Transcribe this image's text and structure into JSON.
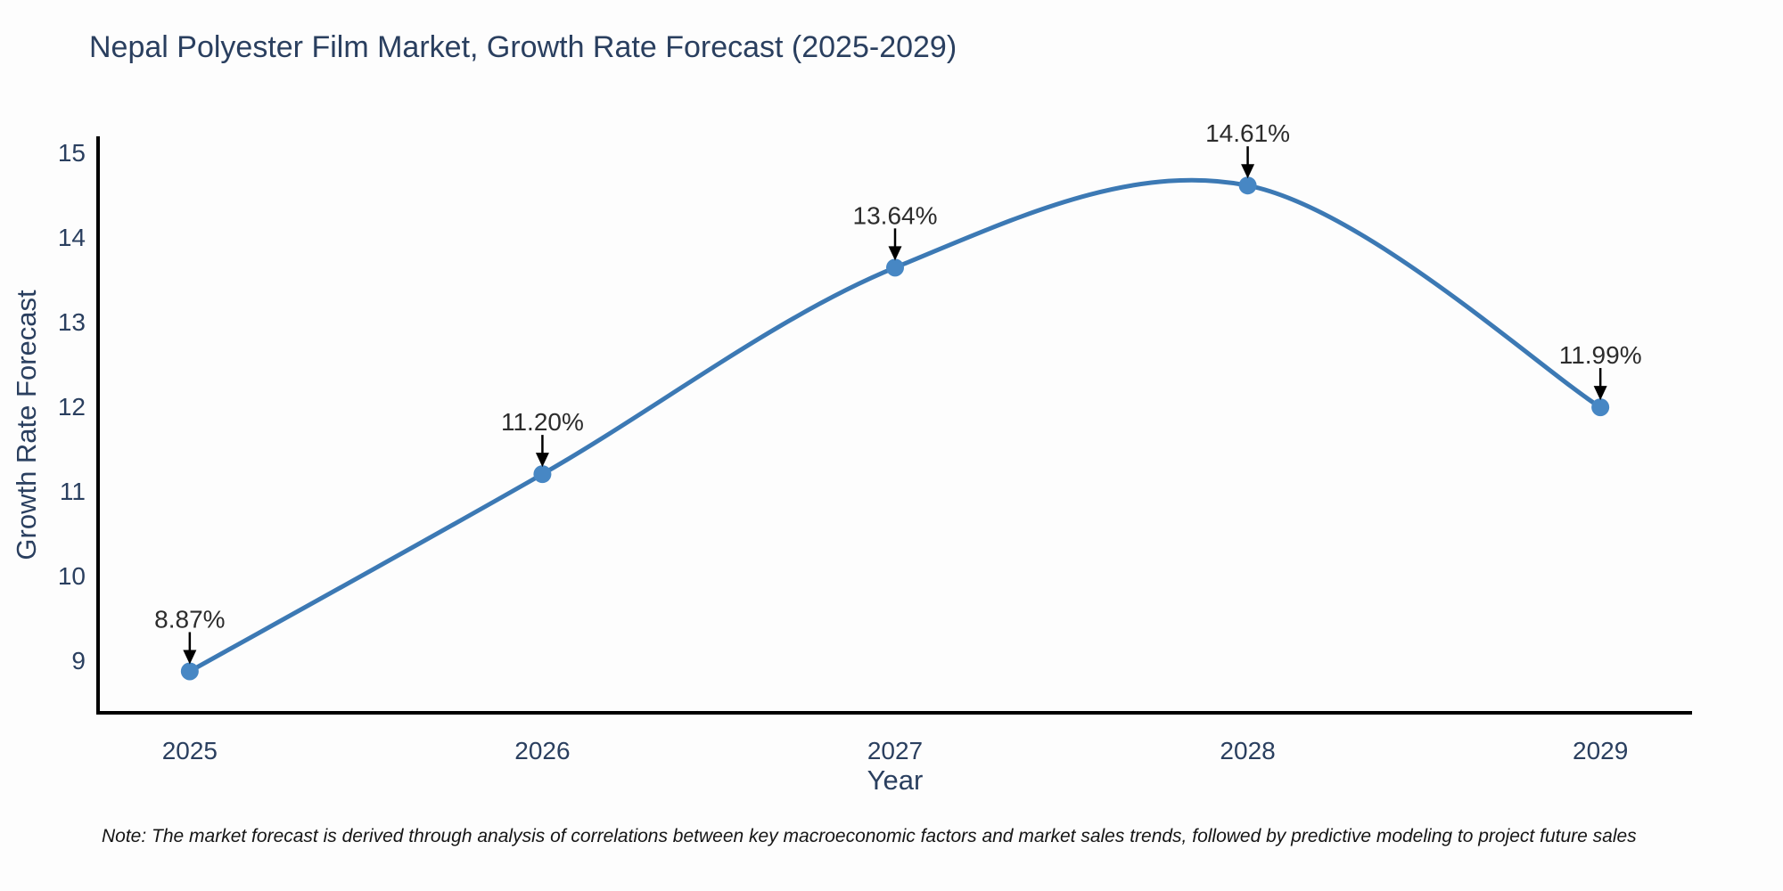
{
  "chart_data": {
    "type": "line",
    "title": "Nepal Polyester Film Market, Growth Rate Forecast (2025-2029)",
    "xlabel": "Year",
    "ylabel": "Growth Rate Forecast",
    "note": "Note: The market forecast is derived through analysis of correlations between key macroeconomic factors and market sales trends, followed by predictive modeling to project future sales",
    "x": [
      2025,
      2026,
      2027,
      2028,
      2029
    ],
    "series": [
      {
        "name": "Growth Rate Forecast",
        "values": [
          8.87,
          11.2,
          13.64,
          14.61,
          11.99
        ]
      }
    ],
    "point_labels": [
      "8.87%",
      "11.20%",
      "13.64%",
      "14.61%",
      "11.99%"
    ],
    "x_tick_labels": [
      "2025",
      "2026",
      "2027",
      "2028",
      "2029"
    ],
    "y_ticks": [
      9,
      10,
      11,
      12,
      13,
      14,
      15
    ],
    "xlim": [
      2024.74,
      2029.26
    ],
    "ylim": [
      8.38,
      15.17
    ],
    "line_shape": "spline",
    "grid": false,
    "legend": "none",
    "colors": {
      "line": "#3c79b4",
      "marker": "#4787c4",
      "axis": "#000000",
      "heading_text": "#2a3f5f",
      "tick_text": "#2a3f5f",
      "annotation_text": "#2c2c2c",
      "annotation_arrow": "#000000",
      "note_text": "#151515",
      "background": "#fdfdfd"
    }
  }
}
